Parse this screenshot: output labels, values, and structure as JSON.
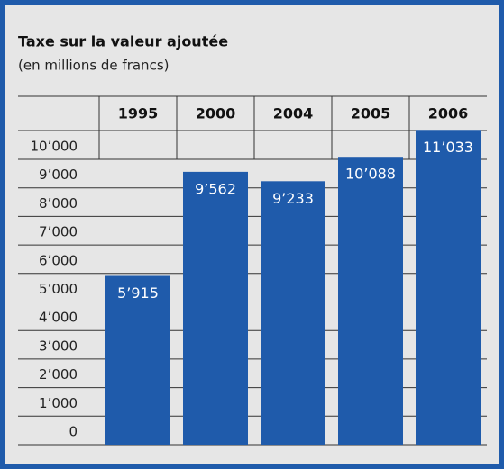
{
  "chart_data": {
    "type": "bar",
    "title": "Taxe sur la valeur ajoutée",
    "subtitle": "(en millions de francs)",
    "categories": [
      "1995",
      "2000",
      "2004",
      "2005",
      "2006"
    ],
    "values": [
      5915,
      9562,
      9233,
      10088,
      11033
    ],
    "value_labels": [
      "5’915",
      "9’562",
      "9’233",
      "10’088",
      "11’033"
    ],
    "color": "#1f5bab",
    "ylim": [
      0,
      10000
    ],
    "yticks": [
      0,
      {
        "value": 1000,
        "label": "1’000"
      },
      {
        "value": 2000,
        "label": "2’000"
      },
      {
        "value": 3000,
        "label": "3’000"
      },
      {
        "value": 4000,
        "label": "4’000"
      },
      {
        "value": 5000,
        "label": "5’000"
      },
      {
        "value": 6000,
        "label": "6’000"
      },
      {
        "value": 7000,
        "label": "7’000"
      },
      {
        "value": 8000,
        "label": "8’000"
      },
      {
        "value": 9000,
        "label": "9’000"
      },
      {
        "value": 10000,
        "label": "10’000"
      }
    ],
    "grid": true
  }
}
